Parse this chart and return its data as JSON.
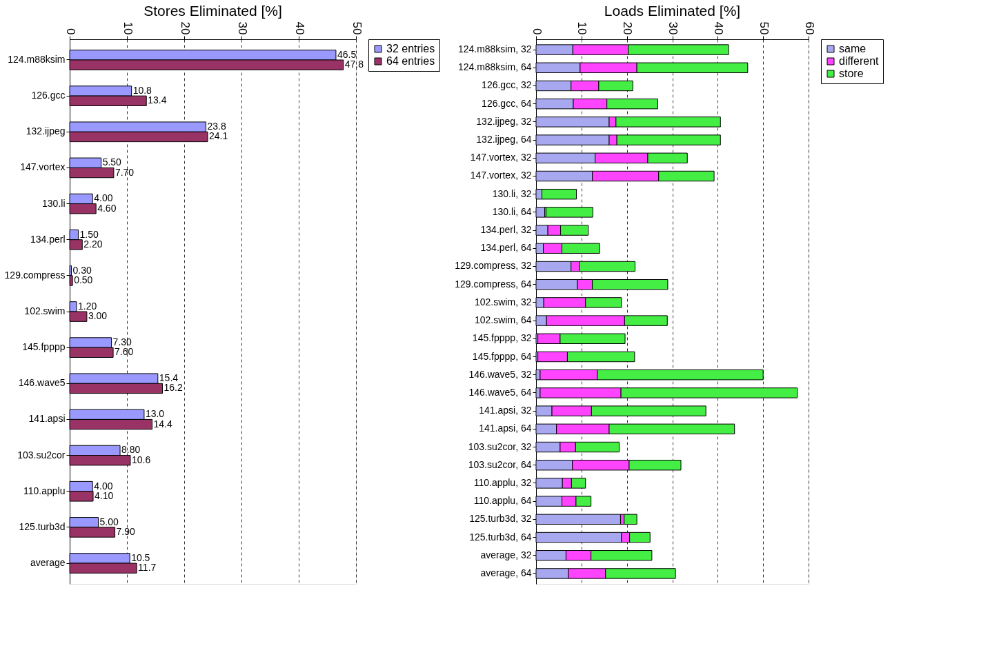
{
  "chart_data": [
    {
      "type": "bar",
      "orientation": "horizontal",
      "title": "Stores Eliminated [%]",
      "categories": [
        "124.m88ksim",
        "126.gcc",
        "132.ijpeg",
        "147.vortex",
        "130.li",
        "134.perl",
        "129.compress",
        "102.swim",
        "145.fpppp",
        "146.wave5",
        "141.apsi",
        "103.su2cor",
        "110.applu",
        "125.turb3d",
        "average"
      ],
      "series": [
        {
          "name": "32 entries",
          "color": "#9999ff",
          "values": [
            46.5,
            10.8,
            23.8,
            5.5,
            4.0,
            1.5,
            0.3,
            1.2,
            7.3,
            15.4,
            13.0,
            8.8,
            4.0,
            5.0,
            10.5
          ],
          "value_labels": [
            "46.5",
            "10.8",
            "23.8",
            "5.50",
            "4.00",
            "1.50",
            "0.30",
            "1.20",
            "7.30",
            "15.4",
            "13.0",
            "8.80",
            "4.00",
            "5.00",
            "10.5"
          ]
        },
        {
          "name": "64 entries",
          "color": "#993366",
          "values": [
            47.8,
            13.4,
            24.1,
            7.7,
            4.6,
            2.2,
            0.5,
            3.0,
            7.6,
            16.2,
            14.4,
            10.6,
            4.1,
            7.9,
            11.7
          ],
          "value_labels": [
            "47.8",
            "13.4",
            "24.1",
            "7.70",
            "4.60",
            "2.20",
            "0.50",
            "3.00",
            "7.60",
            "16.2",
            "14.4",
            "10.6",
            "4.10",
            "7.90",
            "11.7"
          ]
        }
      ],
      "xlim": [
        0,
        50
      ],
      "xticks": [
        0,
        10,
        20,
        30,
        40,
        50
      ],
      "grid": "x",
      "legend": "right"
    },
    {
      "type": "bar",
      "orientation": "horizontal",
      "stacked": true,
      "title": "Loads Eliminated [%]",
      "categories": [
        "124.m88ksim, 32",
        "124.m88ksim, 64",
        "126.gcc, 32",
        "126.gcc, 64",
        "132.ijpeg, 32",
        "132.ijpeg, 64",
        "147.vortex, 32",
        "147.vortex, 32",
        "130.li, 32",
        "130.li, 64",
        "134.perl, 32",
        "134.perl, 64",
        "129.compress, 32",
        "129.compress, 64",
        "102.swim, 32",
        "102.swim, 64",
        "145.fpppp, 32",
        "145.fpppp, 64",
        "146.wave5, 32",
        "146.wave5, 64",
        "141.apsi, 32",
        "141.apsi, 64",
        "103.su2cor, 32",
        "103.su2cor, 64",
        "110.applu, 32",
        "110.applu, 64",
        "125.turb3d, 32",
        "125.turb3d, 64",
        "average, 32",
        "average, 64"
      ],
      "series": [
        {
          "name": "same",
          "color": "#a8a8f0",
          "values": [
            8.1,
            9.7,
            7.7,
            8.2,
            16.1,
            16.1,
            13.0,
            12.4,
            1.3,
            1.9,
            2.6,
            1.6,
            7.7,
            9.1,
            1.7,
            2.3,
            0.4,
            0.4,
            0.9,
            0.9,
            3.5,
            4.5,
            5.3,
            8.0,
            5.8,
            5.7,
            18.6,
            18.8,
            6.6,
            7.1
          ]
        },
        {
          "name": "different",
          "color": "#ff44ff",
          "values": [
            12.2,
            12.5,
            6.1,
            7.4,
            1.5,
            1.7,
            11.6,
            14.6,
            null,
            0.3,
            2.8,
            4.1,
            1.8,
            3.3,
            9.2,
            17.2,
            4.9,
            6.5,
            12.6,
            17.8,
            8.7,
            11.6,
            3.4,
            12.5,
            2.0,
            3.1,
            0.8,
            1.8,
            5.5,
            8.2
          ]
        },
        {
          "name": "store",
          "color": "#44ee44",
          "values": [
            22.1,
            24.4,
            7.5,
            11.2,
            23.0,
            22.8,
            8.7,
            12.2,
            7.6,
            10.3,
            6.1,
            8.3,
            12.3,
            16.6,
            7.9,
            9.4,
            14.3,
            14.8,
            36.5,
            38.8,
            25.2,
            27.6,
            9.6,
            11.4,
            3.1,
            3.3,
            2.8,
            4.5,
            13.4,
            15.4
          ]
        }
      ],
      "xlim": [
        0,
        60
      ],
      "xticks": [
        0,
        10,
        20,
        30,
        40,
        50,
        60
      ],
      "grid": "x",
      "legend": "right"
    }
  ]
}
